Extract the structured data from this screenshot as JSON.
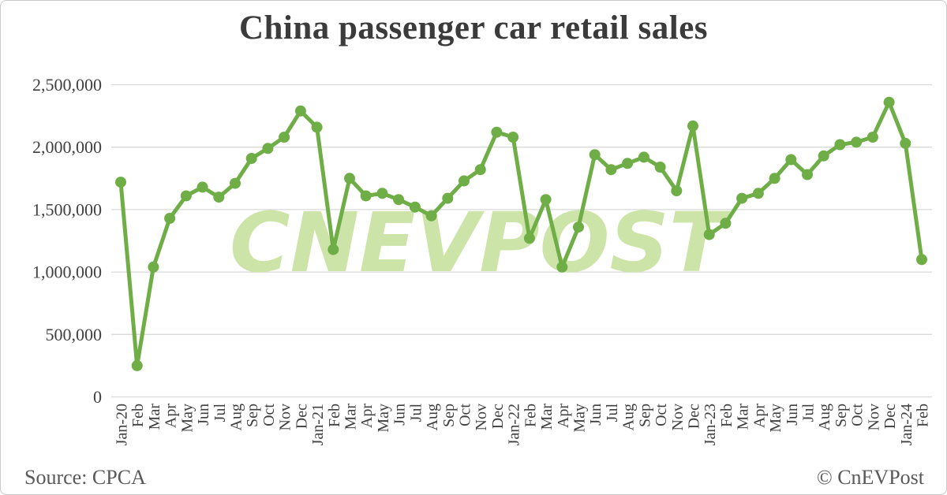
{
  "title": "China passenger car retail sales",
  "watermark": "CNEVPOST",
  "footer": {
    "source": "Source: CPCA",
    "credit": "© CnEVPost"
  },
  "colors": {
    "line": "#6FAD47",
    "marker": "#6FAD47",
    "watermark": "#CDE4A8",
    "grid": "#D9D9D9",
    "axis_text": "#404040",
    "title_text": "#3B3B3B",
    "footer_text": "#595959",
    "border": "#C9C9C9",
    "background": "#FFFFFF"
  },
  "chart_data": {
    "type": "line",
    "title": "China passenger car retail sales",
    "categories": [
      "Jan-20",
      "Feb",
      "Mar",
      "Apr",
      "May",
      "Jun",
      "Jul",
      "Aug",
      "Sep",
      "Oct",
      "Nov",
      "Dec",
      "Jan-21",
      "Feb",
      "Mar",
      "Apr",
      "May",
      "Jun",
      "Jul",
      "Aug",
      "Sep",
      "Oct",
      "Nov",
      "Dec",
      "Jan-22",
      "Feb",
      "Mar",
      "Apr",
      "May",
      "Jun",
      "Jul",
      "Aug",
      "Sep",
      "Oct",
      "Nov",
      "Dec",
      "Jan-23",
      "Feb",
      "Mar",
      "Apr",
      "May",
      "Jun",
      "Jul",
      "Aug",
      "Sep",
      "Oct",
      "Nov",
      "Dec",
      "Jan-24",
      "Feb"
    ],
    "values": [
      1720000,
      250000,
      1040000,
      1430000,
      1610000,
      1680000,
      1600000,
      1710000,
      1910000,
      1990000,
      2080000,
      2290000,
      2160000,
      1180000,
      1750000,
      1610000,
      1630000,
      1580000,
      1520000,
      1450000,
      1590000,
      1730000,
      1820000,
      2120000,
      2080000,
      1270000,
      1580000,
      1040000,
      1360000,
      1940000,
      1820000,
      1870000,
      1920000,
      1840000,
      1650000,
      2170000,
      1300000,
      1390000,
      1590000,
      1630000,
      1750000,
      1900000,
      1780000,
      1930000,
      2020000,
      2040000,
      2080000,
      2360000,
      2030000,
      1100000
    ],
    "xlabel": "",
    "ylabel": "",
    "ylim": [
      0,
      2500000
    ],
    "ytick_interval": 500000,
    "ytick_labels": [
      "0",
      "500,000",
      "1,000,000",
      "1,500,000",
      "2,000,000",
      "2,500,000"
    ],
    "grid": true,
    "legend": false,
    "marker": "circle"
  }
}
